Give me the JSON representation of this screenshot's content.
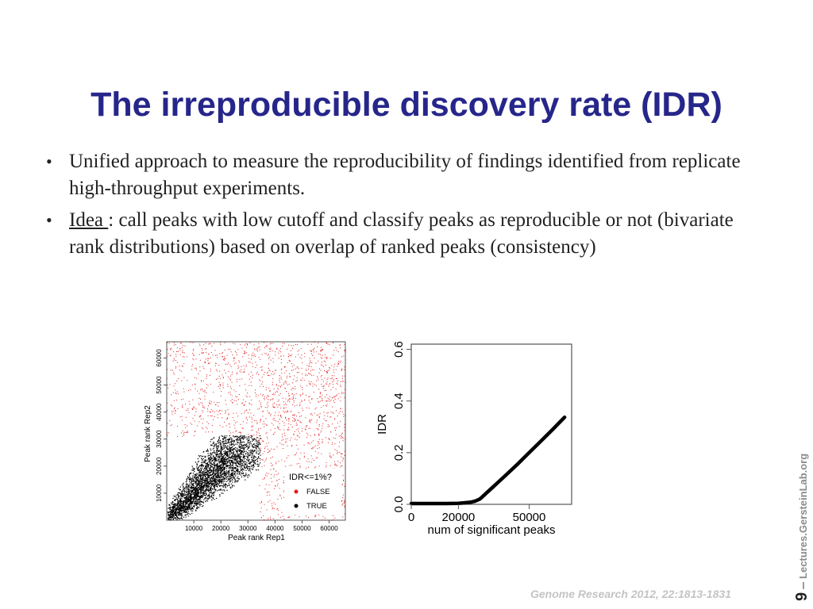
{
  "slide": {
    "title": "The irreproducible discovery rate (IDR)",
    "bullets": [
      {
        "text": "Unified approach to measure the reproducibility of findings identified from replicate high-throughput experiments."
      },
      {
        "lead": "Idea ",
        "text": ": call peaks with low cutoff and classify peaks as reproducible or not (bivariate rank distributions) based on overlap of ranked peaks (consistency)"
      }
    ],
    "citation": "Genome Research 2012, 22:1813-1831",
    "page_number": "9",
    "separator": "–",
    "site": "Lectures.GersteinLab.org"
  },
  "chart_data": [
    {
      "type": "scatter",
      "title": "",
      "xlabel": "Peak rank Rep1",
      "ylabel": "Peak rank Rep2",
      "xticks": [
        "10000",
        "20000",
        "30000",
        "40000",
        "50000",
        "60000"
      ],
      "yticks": [
        "10000",
        "20000",
        "30000",
        "40000",
        "50000",
        "60000"
      ],
      "xlim": [
        0,
        66000
      ],
      "ylim": [
        0,
        66000
      ],
      "legend": {
        "title": "IDR<=1%?",
        "position": "bottom-right",
        "entries": [
          {
            "label": "FALSE",
            "color": "#e31a1c"
          },
          {
            "label": "TRUE",
            "color": "#000000"
          }
        ]
      },
      "series": [
        {
          "name": "FALSE",
          "color": "#e31a1c",
          "description_points": [
            [
              5000,
              60000
            ],
            [
              30000,
              40000
            ],
            [
              60000,
              10000
            ],
            [
              60000,
              60000
            ]
          ]
        },
        {
          "name": "TRUE",
          "color": "#000000",
          "description_points": [
            [
              2000,
              2000
            ],
            [
              15000,
              15000
            ],
            [
              25000,
              25000
            ],
            [
              33000,
              30000
            ]
          ]
        }
      ]
    },
    {
      "type": "line",
      "title": "",
      "xlabel": "num of significant peaks",
      "ylabel": "IDR",
      "xticks": [
        "0",
        "20000",
        "50000"
      ],
      "yticks": [
        "0.0",
        "0.2",
        "0.4",
        "0.6"
      ],
      "xlim": [
        0,
        68000
      ],
      "ylim": [
        0,
        0.62
      ],
      "x": [
        0,
        5000,
        10000,
        15000,
        20000,
        25000,
        27000,
        29000,
        30000,
        32000,
        35000,
        40000,
        45000,
        50000,
        55000,
        60000,
        65000
      ],
      "y": [
        0.003,
        0.003,
        0.003,
        0.003,
        0.004,
        0.008,
        0.012,
        0.02,
        0.028,
        0.045,
        0.07,
        0.112,
        0.155,
        0.2,
        0.245,
        0.29,
        0.337
      ]
    }
  ]
}
